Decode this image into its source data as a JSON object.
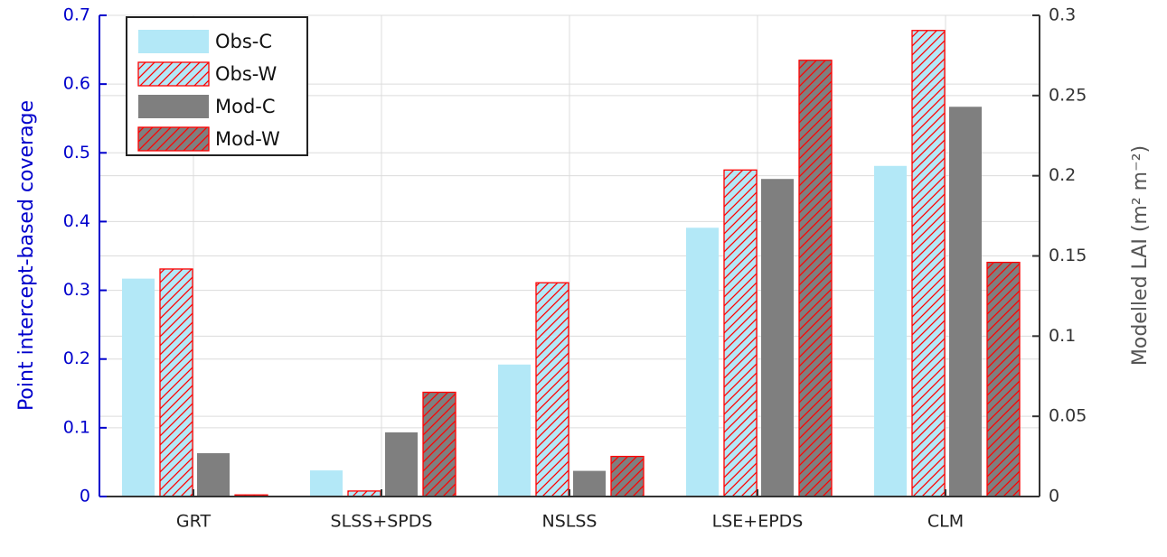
{
  "chart_data": {
    "type": "bar",
    "categories": [
      "GRT",
      "SLSS+SPDS",
      "NSLSS",
      "LSE+EPDS",
      "CLM"
    ],
    "ylabel": "Point intercept-based coverage",
    "y2label": "Modelled LAI (m² m⁻²)",
    "ylim": [
      0,
      0.7
    ],
    "yticks": [
      0,
      0.1,
      0.2,
      0.3,
      0.4,
      0.5,
      0.6,
      0.7
    ],
    "y2lim": [
      0,
      0.3
    ],
    "y2ticks": [
      0,
      0.05,
      0.1,
      0.15,
      0.2,
      0.25,
      0.3
    ],
    "grid": true,
    "legend": "upper left",
    "series": [
      {
        "name": "Obs-C",
        "color": "#b3e8f7",
        "hatch": false,
        "values": [
          0.317,
          0.038,
          0.192,
          0.391,
          0.481
        ]
      },
      {
        "name": "Obs-W",
        "color": "#b3e8f7",
        "hatch": true,
        "hatch_color": "#ff0000",
        "values": [
          0.331,
          0.008,
          0.311,
          0.475,
          0.678
        ]
      },
      {
        "name": "Mod-C",
        "color": "#7f7f7f",
        "hatch": false,
        "axis": "y2",
        "values": [
          0.027,
          0.04,
          0.016,
          0.198,
          0.243
        ]
      },
      {
        "name": "Mod-W",
        "color": "#7f7f7f",
        "hatch": true,
        "hatch_color": "#ff0000",
        "axis": "y2",
        "values": [
          0.001,
          0.065,
          0.025,
          0.272,
          0.146
        ]
      }
    ]
  }
}
